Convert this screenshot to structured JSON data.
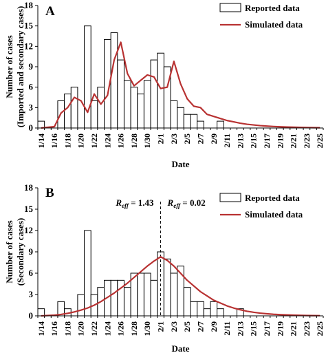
{
  "colors": {
    "bars_fill": "#ffffff",
    "bars_stroke": "#000000",
    "simulated_line": "#b83232"
  },
  "chart_data": [
    {
      "type": "bar",
      "panel_label": "A",
      "title": "",
      "xlabel": "Date",
      "ylabel_line1": "Number of cases",
      "ylabel_line2": "(Imported and secondary cases)",
      "ylim": [
        0,
        18
      ],
      "yticks": [
        "0",
        "3",
        "6",
        "9",
        "12",
        "15",
        "18"
      ],
      "x_tick_labels": [
        "1/14",
        "1/16",
        "1/18",
        "1/20",
        "1/22",
        "1/24",
        "1/26",
        "1/28",
        "1/30",
        "2/1",
        "2/3",
        "2/5",
        "2/7",
        "2/9",
        "2/11",
        "2/13",
        "2/15",
        "2/17",
        "2/19",
        "2/21",
        "2/23",
        "2/25"
      ],
      "dates": [
        "1/14",
        "1/15",
        "1/16",
        "1/17",
        "1/18",
        "1/19",
        "1/20",
        "1/21",
        "1/22",
        "1/23",
        "1/24",
        "1/25",
        "1/26",
        "1/27",
        "1/28",
        "1/29",
        "1/30",
        "1/31",
        "2/1",
        "2/2",
        "2/3",
        "2/4",
        "2/5",
        "2/6",
        "2/7",
        "2/8",
        "2/9",
        "2/10",
        "2/11",
        "2/12",
        "2/13",
        "2/14",
        "2/15",
        "2/16",
        "2/17",
        "2/18",
        "2/19",
        "2/20",
        "2/21",
        "2/22",
        "2/23",
        "2/24",
        "2/25"
      ],
      "grid": false,
      "legend_position": "top-right",
      "legend": [
        "Reported data",
        "Simulated data"
      ],
      "series": [
        {
          "name": "Reported data",
          "type": "bar",
          "values": [
            1,
            0,
            0,
            4,
            5,
            6,
            0,
            15,
            4,
            6,
            13,
            14,
            10,
            7,
            6,
            5,
            7,
            10,
            11,
            9,
            4,
            3,
            2,
            2,
            1,
            0,
            0,
            1,
            0,
            0,
            0,
            0,
            0,
            0,
            0,
            0,
            0,
            0,
            0,
            0,
            0,
            0,
            0
          ]
        },
        {
          "name": "Simulated data",
          "type": "line",
          "values": [
            0,
            0.1,
            0.2,
            2.2,
            3.0,
            4.5,
            4.0,
            2.3,
            5.0,
            3.5,
            4.8,
            10.0,
            12.6,
            8.0,
            6.2,
            7.0,
            7.8,
            7.5,
            5.8,
            6.0,
            9.8,
            6.5,
            4.3,
            3.2,
            3.0,
            2.0,
            1.7,
            1.4,
            1.1,
            0.9,
            0.7,
            0.55,
            0.45,
            0.35,
            0.28,
            0.22,
            0.18,
            0.14,
            0.11,
            0.09,
            0.07,
            0.05,
            0.04
          ]
        }
      ]
    },
    {
      "type": "bar",
      "panel_label": "B",
      "title": "",
      "xlabel": "Date",
      "ylabel_line1": "Number of cases",
      "ylabel_line2": "(Secondary cases)",
      "ylim": [
        0,
        18
      ],
      "yticks": [
        "0",
        "3",
        "6",
        "9",
        "12",
        "15",
        "18"
      ],
      "x_tick_labels": [
        "1/14",
        "1/16",
        "1/18",
        "1/20",
        "1/22",
        "1/24",
        "1/26",
        "1/28",
        "1/30",
        "2/1",
        "2/3",
        "2/5",
        "2/7",
        "2/9",
        "2/11",
        "2/13",
        "2/15",
        "2/17",
        "2/19",
        "2/21",
        "2/23",
        "2/25"
      ],
      "dates": [
        "1/14",
        "1/15",
        "1/16",
        "1/17",
        "1/18",
        "1/19",
        "1/20",
        "1/21",
        "1/22",
        "1/23",
        "1/24",
        "1/25",
        "1/26",
        "1/27",
        "1/28",
        "1/29",
        "1/30",
        "1/31",
        "2/1",
        "2/2",
        "2/3",
        "2/4",
        "2/5",
        "2/6",
        "2/7",
        "2/8",
        "2/9",
        "2/10",
        "2/11",
        "2/12",
        "2/13",
        "2/14",
        "2/15",
        "2/16",
        "2/17",
        "2/18",
        "2/19",
        "2/20",
        "2/21",
        "2/22",
        "2/23",
        "2/24",
        "2/25"
      ],
      "grid": false,
      "legend_position": "top-right",
      "legend": [
        "Reported data",
        "Simulated data"
      ],
      "vline_date": "2/1",
      "annotations": {
        "left": {
          "prefix": "R",
          "subscript": "eff",
          "text": " = 1.43"
        },
        "right": {
          "prefix": "R",
          "subscript": "eff",
          "text": " = 0.02"
        }
      },
      "series": [
        {
          "name": "Reported data",
          "type": "bar",
          "values": [
            1,
            0,
            0,
            2,
            1,
            0,
            3,
            12,
            3,
            4,
            5,
            5,
            5,
            4,
            6,
            6,
            6,
            5,
            9,
            8,
            6,
            7,
            4,
            2,
            2,
            1,
            2,
            1,
            0,
            0,
            1,
            0,
            0,
            0,
            0,
            0,
            0,
            0,
            0,
            0,
            0,
            0,
            0
          ]
        },
        {
          "name": "Simulated data",
          "type": "line",
          "values": [
            0,
            0.05,
            0.1,
            0.2,
            0.35,
            0.55,
            0.8,
            1.1,
            1.5,
            2.0,
            2.6,
            3.2,
            3.9,
            4.6,
            5.4,
            6.2,
            7.0,
            7.7,
            8.3,
            7.8,
            7.0,
            6.0,
            5.0,
            4.2,
            3.4,
            2.8,
            2.2,
            1.8,
            1.4,
            1.1,
            0.85,
            0.65,
            0.5,
            0.38,
            0.29,
            0.22,
            0.17,
            0.13,
            0.1,
            0.07,
            0.05,
            0.04,
            0.03
          ]
        }
      ]
    }
  ]
}
